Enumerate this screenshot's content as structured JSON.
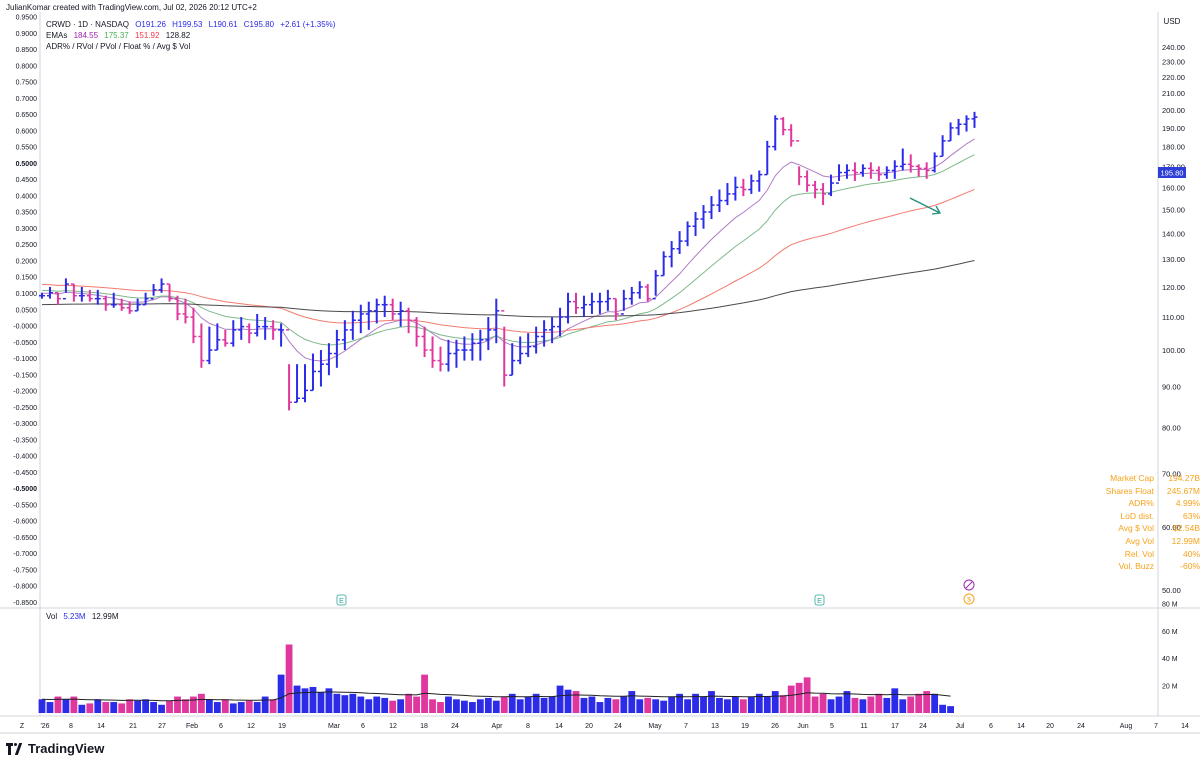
{
  "header": {
    "credit": "JulianKomar created with TradingView.com, Jul 02, 2026 20:12 UTC+2"
  },
  "legend": {
    "symbol_line": "CRWD · 1D · NASDAQ",
    "open": "O191.26",
    "high": "H199.53",
    "low": "L190.61",
    "close": "C195.80",
    "change": "+2.61 (+1.35%)",
    "emas_label": "EMAs",
    "ema_values": [
      {
        "value": "184.55",
        "color": "#9c27b0"
      },
      {
        "value": "175.37",
        "color": "#4caf50"
      },
      {
        "value": "151.92",
        "color": "#f23645"
      },
      {
        "value": "128.82",
        "color": "#131722"
      }
    ],
    "indicator_line": "ADR% / RVol / PVol / Float % / Avg $ Vol",
    "volume_label": "Vol",
    "volume_value": "5.23M",
    "volume_avg": "12.99M"
  },
  "colors": {
    "up": "#2b2be8",
    "down": "#e0379f",
    "ema_fast": "#b07cc6",
    "ema_mid": "#7fb98b",
    "ema_slow": "#f27a6f",
    "ema_long": "#4a4a4a",
    "price_tag": "#2d3fd6",
    "stats_text": "#f7a21b",
    "arrow": "#1e8c7e"
  },
  "stats_table": [
    {
      "label": "Market Cap",
      "value": "194.27B"
    },
    {
      "label": "Shares Float",
      "value": "245.67M"
    },
    {
      "label": "ADR%",
      "value": "4.99%"
    },
    {
      "label": "LoD dist.",
      "value": "63%"
    },
    {
      "label": "Avg $ Vol",
      "value": "$2.54B"
    },
    {
      "label": "Avg Vol",
      "value": "12.99M"
    },
    {
      "label": "Rel. Vol",
      "value": "40%"
    },
    {
      "label": "Vol. Buzz",
      "value": "-60%"
    }
  ],
  "footer": {
    "brand": "TradingView"
  },
  "chart_data": {
    "type": "ohlc",
    "currency": "USD",
    "last_price_tag": "195.80",
    "right_axis_ticks": [
      "240.00",
      "230.00",
      "220.00",
      "210.00",
      "200.00",
      "190.00",
      "180.00",
      "170.00",
      "160.00",
      "150.00",
      "140.00",
      "130.00",
      "120.00",
      "110.00",
      "100.00",
      "90.00",
      "80.00",
      "70.00",
      "60.00",
      "50.00"
    ],
    "left_axis_ticks": [
      "0.9500",
      "0.9000",
      "0.8500",
      "0.8000",
      "0.7500",
      "0.7000",
      "0.6500",
      "0.6000",
      "0.5500",
      "0.5000",
      "0.4500",
      "0.4000",
      "0.3500",
      "0.3000",
      "0.2500",
      "0.2000",
      "0.1500",
      "0.1000",
      "0.0500",
      "-0.0000",
      "-0.0500",
      "-0.1000",
      "-0.1500",
      "-0.2000",
      "-0.2500",
      "-0.3000",
      "-0.3500",
      "-0.4000",
      "-0.4500",
      "-0.5000",
      "-0.5500",
      "-0.6000",
      "-0.6500",
      "-0.7000",
      "-0.7500",
      "-0.8000",
      "-0.8500"
    ],
    "left_axis_bold": [
      "0.5000",
      "-0.5000"
    ],
    "volume_axis_ticks": [
      "80 M",
      "60 M",
      "40 M",
      "20 M"
    ],
    "x_tick_labels": [
      "Z",
      "'26",
      "8",
      "14",
      "21",
      "27",
      "Feb",
      "6",
      "12",
      "19",
      "Mar",
      "6",
      "12",
      "18",
      "24",
      "Apr",
      "8",
      "14",
      "20",
      "24",
      "May",
      "7",
      "13",
      "19",
      "26",
      "Jun",
      "5",
      "11",
      "17",
      "24",
      "Jul",
      "6",
      "14",
      "20",
      "24",
      "Aug",
      "7",
      "14"
    ],
    "events": [
      "E",
      "E"
    ],
    "bars": [
      [
        118,
        116,
        117
      ],
      [
        120,
        116,
        118
      ],
      [
        118,
        114,
        116
      ],
      [
        123,
        118,
        121
      ],
      [
        121,
        115,
        117
      ],
      [
        120,
        115,
        117
      ],
      [
        119,
        115,
        116
      ],
      [
        119,
        114,
        116
      ],
      [
        117,
        112,
        114
      ],
      [
        118,
        113,
        114
      ],
      [
        116,
        112,
        113
      ],
      [
        115,
        111,
        112
      ],
      [
        116,
        112,
        114
      ],
      [
        118,
        114,
        116
      ],
      [
        121,
        117,
        119
      ],
      [
        123,
        118,
        121
      ],
      [
        121,
        115,
        116
      ],
      [
        117,
        109,
        111
      ],
      [
        116,
        108,
        110
      ],
      [
        113,
        102,
        104
      ],
      [
        108,
        95,
        97
      ],
      [
        107,
        96,
        100
      ],
      [
        108,
        100,
        103
      ],
      [
        106,
        101,
        102
      ],
      [
        109,
        101,
        106
      ],
      [
        110,
        103,
        107
      ],
      [
        108,
        102,
        105
      ],
      [
        111,
        104,
        107
      ],
      [
        110,
        103,
        107
      ],
      [
        109,
        103,
        106
      ],
      [
        108,
        101,
        106
      ],
      [
        96,
        84,
        86
      ],
      [
        96,
        86,
        87
      ],
      [
        96,
        86,
        89
      ],
      [
        99,
        89,
        94
      ],
      [
        100,
        90,
        96
      ],
      [
        102,
        93,
        99
      ],
      [
        106,
        95,
        103
      ],
      [
        109,
        100,
        106
      ],
      [
        112,
        103,
        109
      ],
      [
        114,
        105,
        111
      ],
      [
        115,
        106,
        112
      ],
      [
        116,
        108,
        114
      ],
      [
        117,
        110,
        114
      ],
      [
        116,
        109,
        111
      ],
      [
        115,
        107,
        112
      ],
      [
        113,
        105,
        109
      ],
      [
        110,
        101,
        104
      ],
      [
        107,
        98,
        100
      ],
      [
        104,
        95,
        97
      ],
      [
        101,
        94,
        96
      ],
      [
        103,
        94,
        99
      ],
      [
        103,
        95,
        100
      ],
      [
        104,
        97,
        100
      ],
      [
        105,
        97,
        102
      ],
      [
        106,
        97,
        103
      ],
      [
        110,
        100,
        106
      ],
      [
        116,
        102,
        112
      ],
      [
        107,
        90,
        93
      ],
      [
        102,
        93,
        97
      ],
      [
        104,
        96,
        99
      ],
      [
        105,
        98,
        101
      ],
      [
        107,
        99,
        104
      ],
      [
        109,
        101,
        106
      ],
      [
        110,
        102,
        107
      ],
      [
        113,
        104,
        110
      ],
      [
        118,
        108,
        115
      ],
      [
        118,
        111,
        113
      ],
      [
        117,
        110,
        114
      ],
      [
        118,
        111,
        115
      ],
      [
        118,
        111,
        115
      ],
      [
        119,
        112,
        116
      ],
      [
        116,
        109,
        111
      ],
      [
        119,
        112,
        116
      ],
      [
        120,
        114,
        118
      ],
      [
        122,
        116,
        120
      ],
      [
        121,
        115,
        116
      ],
      [
        126,
        117,
        124
      ],
      [
        133,
        124,
        131
      ],
      [
        137,
        127,
        134
      ],
      [
        141,
        132,
        137
      ],
      [
        145,
        135,
        143
      ],
      [
        149,
        139,
        146
      ],
      [
        152,
        142,
        149
      ],
      [
        156,
        146,
        152
      ],
      [
        159,
        149,
        154
      ],
      [
        162,
        152,
        157
      ],
      [
        165,
        154,
        160
      ],
      [
        164,
        156,
        159
      ],
      [
        166,
        157,
        163
      ],
      [
        168,
        158,
        166
      ],
      [
        183,
        166,
        180
      ],
      [
        197,
        178,
        195
      ],
      [
        196,
        186,
        189
      ],
      [
        192,
        180,
        183
      ],
      [
        170,
        161,
        165
      ],
      [
        168,
        158,
        161
      ],
      [
        163,
        155,
        159
      ],
      [
        162,
        152,
        157
      ],
      [
        166,
        156,
        162
      ],
      [
        171,
        163,
        167
      ],
      [
        171,
        164,
        168
      ],
      [
        172,
        163,
        167
      ],
      [
        171,
        165,
        169
      ],
      [
        172,
        164,
        168
      ],
      [
        170,
        163,
        166
      ],
      [
        170,
        164,
        168
      ],
      [
        173,
        164,
        170
      ],
      [
        179,
        168,
        171
      ],
      [
        176,
        167,
        170
      ],
      [
        171,
        165,
        169
      ],
      [
        172,
        164,
        168
      ],
      [
        177,
        167,
        175
      ],
      [
        186,
        175,
        183
      ],
      [
        193,
        183,
        190
      ],
      [
        195,
        186,
        192
      ],
      [
        197,
        188,
        195
      ],
      [
        199,
        190,
        196
      ]
    ],
    "volume_series": [
      10,
      8,
      12,
      10,
      12,
      6,
      7,
      10,
      8,
      8,
      7,
      10,
      9,
      10,
      8,
      6,
      9,
      12,
      10,
      12,
      14,
      10,
      8,
      10,
      7,
      8,
      9,
      8,
      12,
      10,
      28,
      50,
      20,
      18,
      19,
      15,
      18,
      14,
      13,
      14,
      12,
      10,
      12,
      11,
      9,
      10,
      14,
      12,
      28,
      10,
      8,
      12,
      10,
      9,
      8,
      10,
      11,
      9,
      12,
      14,
      10,
      12,
      14,
      11,
      12,
      20,
      17,
      16,
      11,
      12,
      8,
      11,
      10,
      12,
      16,
      10,
      11,
      10,
      9,
      12,
      14,
      10,
      14,
      12,
      16,
      11,
      10,
      12,
      10,
      12,
      14,
      12,
      16,
      13,
      20,
      22,
      26,
      12,
      14,
      10,
      12,
      16,
      11,
      10,
      12,
      14,
      11,
      18,
      10,
      12,
      14,
      16,
      14,
      6,
      5
    ]
  }
}
